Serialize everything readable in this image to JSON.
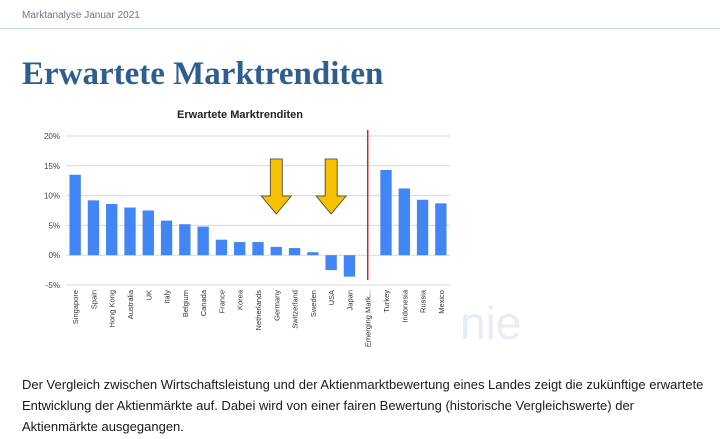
{
  "header": {
    "text": "Marktanalyse Januar 2021"
  },
  "page": {
    "title": "Erwartete Marktrenditen",
    "watermark": "nie",
    "body_text": "Der Vergleich zwischen Wirtschaftsleistung und der Aktienmarktbewertung eines Landes zeigt die zukünftige erwartete Entwicklung der Aktienmärkte auf. Dabei wird von einer fairen Bewertung (historische Vergleichswerte) der Aktienmärkte ausgegangen."
  },
  "chart_data": {
    "type": "bar",
    "title": "Erwartete Marktrenditen",
    "xlabel": "",
    "ylabel": "",
    "ylim": [
      -5,
      20
    ],
    "yticks": [
      -5,
      0,
      5,
      10,
      15,
      20
    ],
    "ytick_labels": [
      "-5%",
      "0%",
      "5%",
      "10%",
      "15%",
      "20%"
    ],
    "grid": true,
    "legend": "none",
    "bar_color": "#4285f4",
    "divider_color": "#e02020",
    "arrow_color": "#f6c100",
    "arrow_outline_color": "#3a3a3a",
    "categories": [
      "Singapore",
      "Spain",
      "Hong Kong",
      "Australia",
      "UK",
      "Italy",
      "Belgium",
      "Canada",
      "France",
      "Korea",
      "Netherlands",
      "Germany",
      "Switzerland",
      "Sweden",
      "USA",
      "Japan",
      "Emerging Mark...",
      "Turkey",
      "Indonesia",
      "Russia",
      "Mexico"
    ],
    "values": [
      13.5,
      9.2,
      8.6,
      8.0,
      7.5,
      5.8,
      5.2,
      4.8,
      2.6,
      2.2,
      2.2,
      1.4,
      1.2,
      0.5,
      -2.5,
      -3.6,
      null,
      14.3,
      11.2,
      9.3,
      8.7
    ],
    "divider_category": "Emerging Mark...",
    "arrow_categories": [
      "Germany",
      "USA"
    ]
  }
}
